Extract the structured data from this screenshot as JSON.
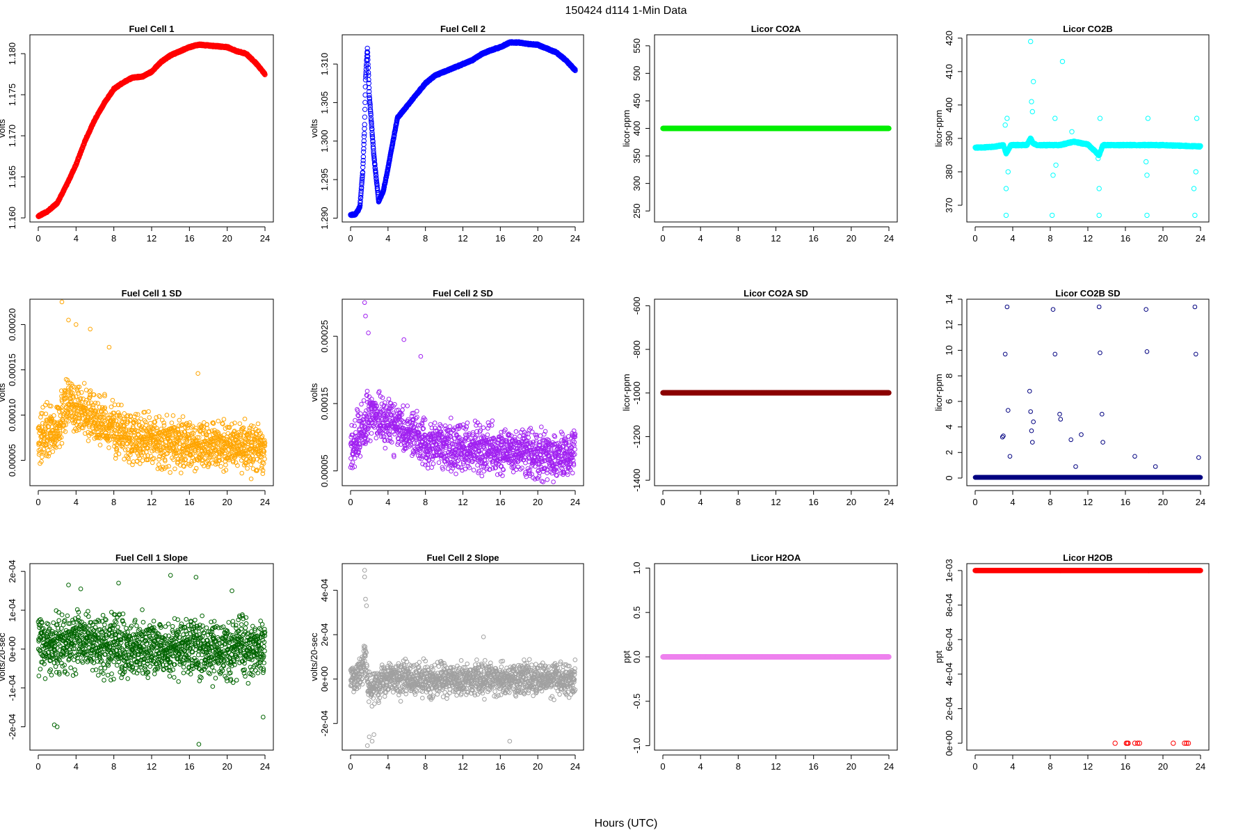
{
  "page": {
    "title": "150424   d114   1-Min Data",
    "xlabel": "Hours (UTC)"
  },
  "chart_data": [
    {
      "type": "scatter",
      "title": "Fuel Cell 1",
      "xlabel": "",
      "ylabel": "volts",
      "xlim": [
        0,
        24
      ],
      "ylim": [
        1.1595,
        1.1823
      ],
      "xticks": [
        0,
        4,
        8,
        12,
        16,
        20,
        24
      ],
      "xtick_labels": [
        "0",
        "4",
        "8",
        "12",
        "16",
        "20",
        "24"
      ],
      "yticks": [
        1.16,
        1.165,
        1.17,
        1.175,
        1.18
      ],
      "ytick_labels": [
        "1.160",
        "1.165",
        "1.170",
        "1.175",
        "1.180"
      ],
      "color": "#ff0000",
      "marker_size": 3.2,
      "x": [
        0,
        1,
        2,
        3,
        4,
        5,
        6,
        7,
        8,
        9,
        10,
        11,
        12,
        13,
        14,
        15,
        16,
        17,
        18,
        19,
        20,
        21,
        22,
        23,
        24
      ],
      "y": [
        1.1602,
        1.1608,
        1.1618,
        1.164,
        1.1665,
        1.1695,
        1.172,
        1.174,
        1.1757,
        1.1765,
        1.1771,
        1.1772,
        1.1778,
        1.179,
        1.1798,
        1.1803,
        1.1808,
        1.1811,
        1.181,
        1.1809,
        1.1808,
        1.1803,
        1.18,
        1.1789,
        1.1775
      ]
    },
    {
      "type": "scatter",
      "title": "Fuel Cell 2",
      "xlabel": "",
      "ylabel": "volts",
      "xlim": [
        0,
        24
      ],
      "ylim": [
        1.2895,
        1.3138
      ],
      "xticks": [
        0,
        4,
        8,
        12,
        16,
        20,
        24
      ],
      "xtick_labels": [
        "0",
        "4",
        "8",
        "12",
        "16",
        "20",
        "24"
      ],
      "yticks": [
        1.29,
        1.295,
        1.3,
        1.305,
        1.31
      ],
      "ytick_labels": [
        "1.290",
        "1.295",
        "1.300",
        "1.305",
        "1.310"
      ],
      "color": "#0000ff",
      "marker_size": 3.2,
      "x": [
        0,
        0.5,
        0.8,
        1.0,
        1.3,
        1.5,
        1.6,
        1.8,
        2.0,
        2.5,
        3.0,
        3.5,
        4,
        5,
        6,
        7,
        8,
        9,
        10,
        11,
        12,
        13,
        14,
        15,
        16,
        17,
        18,
        19,
        20,
        21,
        22,
        23,
        24
      ],
      "y": [
        1.2904,
        1.2905,
        1.291,
        1.2915,
        1.296,
        1.302,
        1.308,
        1.312,
        1.306,
        1.298,
        1.2922,
        1.2935,
        1.2965,
        1.303,
        1.3045,
        1.306,
        1.3075,
        1.3085,
        1.309,
        1.3095,
        1.31,
        1.3105,
        1.3113,
        1.3118,
        1.3122,
        1.3128,
        1.3128,
        1.3126,
        1.3125,
        1.312,
        1.3115,
        1.3105,
        1.3092
      ]
    },
    {
      "type": "scatter",
      "title": "Licor CO2A",
      "xlabel": "",
      "ylabel": "licor-ppm",
      "xlim": [
        0,
        24
      ],
      "ylim": [
        230,
        570
      ],
      "xticks": [
        0,
        4,
        8,
        12,
        16,
        20,
        24
      ],
      "xtick_labels": [
        "0",
        "4",
        "8",
        "12",
        "16",
        "20",
        "24"
      ],
      "yticks": [
        250,
        300,
        350,
        400,
        450,
        500,
        550
      ],
      "ytick_labels": [
        "250",
        "300",
        "350",
        "400",
        "450",
        "500",
        "550"
      ],
      "color": "#00ee00",
      "marker_size": 3.2,
      "x": [
        0,
        24
      ],
      "y": [
        400,
        400
      ]
    },
    {
      "type": "scatter",
      "title": "Licor CO2B",
      "xlabel": "",
      "ylabel": "licor-ppm",
      "xlim": [
        0,
        24
      ],
      "ylim": [
        365,
        421
      ],
      "xticks": [
        0,
        4,
        8,
        12,
        16,
        20,
        24
      ],
      "xtick_labels": [
        "0",
        "4",
        "8",
        "12",
        "16",
        "20",
        "24"
      ],
      "yticks": [
        370,
        380,
        390,
        400,
        410,
        420
      ],
      "ytick_labels": [
        "370",
        "380",
        "390",
        "400",
        "410",
        "420"
      ],
      "color": "#00ffff",
      "marker_size": 3.2,
      "x": [
        0,
        2,
        3,
        3.3,
        3.8,
        5.5,
        5.9,
        6.2,
        6.6,
        8,
        9,
        10.5,
        12,
        13.2,
        13.6,
        16,
        20,
        24
      ],
      "y": [
        387.2,
        387.5,
        388.0,
        385.5,
        388.0,
        388.0,
        390.0,
        388.5,
        388.0,
        388.0,
        388.0,
        389.0,
        388.2,
        385.0,
        388.0,
        388.0,
        388.0,
        387.6
      ],
      "outliers_x": [
        3.3,
        3.3,
        3.2,
        3.4,
        3.5,
        5.9,
        6.0,
        6.2,
        6.1,
        8.2,
        8.5,
        8.3,
        8.6,
        9.3,
        10.3,
        13.2,
        13.3,
        13.2,
        13.1,
        18.3,
        18.4,
        18.2,
        18.3,
        23.4,
        23.5,
        23.6,
        23.3
      ],
      "outliers_y": [
        367,
        375,
        394,
        396,
        380,
        419,
        401,
        407,
        398,
        367,
        396,
        379,
        382,
        413,
        392,
        367,
        396,
        375,
        384,
        367,
        396,
        383,
        379,
        367,
        380,
        396,
        375
      ]
    },
    {
      "type": "scatter",
      "title": "Fuel Cell 1 SD",
      "xlabel": "",
      "ylabel": "volts",
      "xlim": [
        0,
        24
      ],
      "ylim": [
        2.2e-05,
        0.000228
      ],
      "xticks": [
        0,
        4,
        8,
        12,
        16,
        20,
        24
      ],
      "xtick_labels": [
        "0",
        "4",
        "8",
        "12",
        "16",
        "20",
        "24"
      ],
      "yticks": [
        5e-05,
        0.0001,
        0.00015,
        0.0002
      ],
      "ytick_labels": [
        "0.00005",
        "0.00010",
        "0.00015",
        "0.00020"
      ],
      "color": "#ffa500",
      "marker_size": 2.8,
      "scatter_mean_x": [
        0,
        2,
        3,
        4,
        6,
        8,
        10,
        12,
        16,
        20,
        24
      ],
      "scatter_mean_y": [
        7.5e-05,
        8.5e-05,
        0.000115,
        0.00011,
        9.5e-05,
        8.5e-05,
        7.5e-05,
        7e-05,
        6.8e-05,
        6.5e-05,
        6.5e-05
      ],
      "scatter_spread": 2.2e-05,
      "highlights_x": [
        2.5,
        3.2,
        4.0,
        5.5,
        7.5,
        16.9
      ],
      "highlights_y": [
        0.000225,
        0.000205,
        0.0002,
        0.000195,
        0.000175,
        0.000146
      ]
    },
    {
      "type": "scatter",
      "title": "Fuel Cell 2 SD",
      "xlabel": "",
      "ylabel": "volts",
      "xlim": [
        0,
        24
      ],
      "ylim": [
        2.8e-05,
        0.000305
      ],
      "xticks": [
        0,
        4,
        8,
        12,
        16,
        20,
        24
      ],
      "xtick_labels": [
        "0",
        "4",
        "8",
        "12",
        "16",
        "20",
        "24"
      ],
      "yticks": [
        5e-05,
        0.00015,
        0.00025
      ],
      "ytick_labels": [
        "0.00005",
        "0.00015",
        "0.00025"
      ],
      "color": "#a020f0",
      "marker_size": 2.8,
      "scatter_mean_x": [
        0,
        1,
        2,
        3,
        4,
        6,
        8,
        10,
        12,
        16,
        20,
        24
      ],
      "scatter_mean_y": [
        8.5e-05,
        0.000105,
        0.000135,
        0.00013,
        0.000125,
        0.00011,
        9e-05,
        8.5e-05,
        8.5e-05,
        8e-05,
        7.5e-05,
        7.5e-05
      ],
      "scatter_spread": 2.8e-05,
      "highlights_x": [
        1.5,
        1.6,
        1.9,
        5.7,
        7.5
      ],
      "highlights_y": [
        0.0003,
        0.00028,
        0.000255,
        0.000245,
        0.00022
      ]
    },
    {
      "type": "scatter",
      "title": "Licor CO2A SD",
      "xlabel": "",
      "ylabel": "licor-ppm",
      "xlim": [
        0,
        24
      ],
      "ylim": [
        -1425,
        -570
      ],
      "xticks": [
        0,
        4,
        8,
        12,
        16,
        20,
        24
      ],
      "xtick_labels": [
        "0",
        "4",
        "8",
        "12",
        "16",
        "20",
        "24"
      ],
      "yticks": [
        -1400,
        -1200,
        -1000,
        -800,
        -600
      ],
      "ytick_labels": [
        "-1400",
        "-1200",
        "-1000",
        "-800",
        "-600"
      ],
      "color": "#8b0000",
      "marker_size": 3.2,
      "x": [
        0,
        24
      ],
      "y": [
        -999,
        -999
      ]
    },
    {
      "type": "scatter",
      "title": "Licor CO2B SD",
      "xlabel": "",
      "ylabel": "licor-ppm",
      "xlim": [
        0,
        24
      ],
      "ylim": [
        -0.6,
        14
      ],
      "xticks": [
        0,
        4,
        8,
        12,
        16,
        20,
        24
      ],
      "xtick_labels": [
        "0",
        "4",
        "8",
        "12",
        "16",
        "20",
        "24"
      ],
      "yticks": [
        0,
        2,
        4,
        6,
        8,
        10,
        12,
        14
      ],
      "ytick_labels": [
        "0",
        "2",
        "4",
        "6",
        "8",
        "10",
        "12",
        "14"
      ],
      "color": "#000080",
      "marker_size": 2.8,
      "x": [
        0,
        24
      ],
      "y": [
        0.05,
        0.05
      ],
      "outliers_x": [
        2.9,
        3.0,
        3.2,
        3.4,
        3.5,
        3.7,
        5.8,
        5.9,
        6.0,
        6.1,
        6.2,
        8.3,
        8.5,
        9.0,
        9.1,
        10.2,
        10.7,
        11.3,
        13.2,
        13.3,
        13.5,
        13.6,
        17.0,
        18.2,
        18.3,
        19.2,
        23.4,
        23.5,
        23.8
      ],
      "outliers_y": [
        3.2,
        3.3,
        9.7,
        13.4,
        5.3,
        1.7,
        6.8,
        5.2,
        3.7,
        2.8,
        4.4,
        13.2,
        9.7,
        5.0,
        4.6,
        3.0,
        0.9,
        3.4,
        13.4,
        9.8,
        5.0,
        2.8,
        1.7,
        13.2,
        9.9,
        0.9,
        13.4,
        9.7,
        1.6
      ]
    },
    {
      "type": "scatter",
      "title": "Fuel Cell 1 Slope",
      "xlabel": "",
      "ylabel": "volts/20-sec",
      "xlim": [
        0,
        24
      ],
      "ylim": [
        -0.00026,
        0.00022
      ],
      "xticks": [
        0,
        4,
        8,
        12,
        16,
        20,
        24
      ],
      "xtick_labels": [
        "0",
        "4",
        "8",
        "12",
        "16",
        "20",
        "24"
      ],
      "yticks": [
        -0.0002,
        -0.0001,
        0,
        0.0001,
        0.0002
      ],
      "ytick_labels": [
        "-2e-04",
        "-1e-04",
        "0e+00",
        "1e-04",
        "2e-04"
      ],
      "color": "#006400",
      "marker_size": 2.8,
      "scatter_mean_x": [
        0,
        4,
        8,
        12,
        16,
        20,
        24
      ],
      "scatter_mean_y": [
        1e-05,
        2e-05,
        1e-05,
        0,
        0,
        0,
        0
      ],
      "scatter_spread": 6e-05,
      "highlights_x": [
        1.7,
        2.0,
        3.2,
        4.5,
        8.5,
        14.0,
        16.7,
        17.0,
        20.5,
        23.8
      ],
      "highlights_y": [
        -0.000195,
        -0.0002,
        0.000165,
        0.000155,
        0.00017,
        0.00019,
        0.000185,
        -0.000245,
        0.00015,
        -0.000175
      ]
    },
    {
      "type": "scatter",
      "title": "Fuel Cell 2 Slope",
      "xlabel": "",
      "ylabel": "volts/20-sec",
      "xlim": [
        0,
        24
      ],
      "ylim": [
        -0.00032,
        0.00052
      ],
      "xticks": [
        0,
        4,
        8,
        12,
        16,
        20,
        24
      ],
      "xtick_labels": [
        "0",
        "4",
        "8",
        "12",
        "16",
        "20",
        "24"
      ],
      "yticks": [
        -0.0002,
        0,
        0.0002,
        0.0004
      ],
      "ytick_labels": [
        "-2e-04",
        "0e+00",
        "2e-04",
        "4e-04"
      ],
      "color": "#a0a0a0",
      "marker_size": 2.8,
      "scatter_mean_x": [
        0,
        1,
        1.5,
        2,
        3,
        4,
        8,
        12,
        16,
        20,
        24
      ],
      "scatter_mean_y": [
        0,
        2e-05,
        0.0001,
        -5e-05,
        -2e-05,
        1e-05,
        0,
        0,
        0,
        0,
        0
      ],
      "scatter_spread": 6e-05,
      "highlights_x": [
        1.5,
        1.5,
        1.6,
        1.7,
        1.8,
        2.0,
        2.3,
        2.5,
        14.2,
        17.0
      ],
      "highlights_y": [
        0.00049,
        0.00046,
        0.00036,
        0.00033,
        -0.0003,
        -0.00026,
        -0.00028,
        -0.00025,
        0.00019,
        -0.00028
      ]
    },
    {
      "type": "scatter",
      "title": "Licor H2OA",
      "xlabel": "",
      "ylabel": "ppt",
      "xlim": [
        0,
        24
      ],
      "ylim": [
        -1.05,
        1.05
      ],
      "xticks": [
        0,
        4,
        8,
        12,
        16,
        20,
        24
      ],
      "xtick_labels": [
        "0",
        "4",
        "8",
        "12",
        "16",
        "20",
        "24"
      ],
      "yticks": [
        -1.0,
        -0.5,
        0.0,
        0.5,
        1.0
      ],
      "ytick_labels": [
        "-1.0",
        "-0.5",
        "0.0",
        "0.5",
        "1.0"
      ],
      "color": "#ee82ee",
      "marker_size": 3.2,
      "x": [
        0,
        24
      ],
      "y": [
        0,
        0
      ]
    },
    {
      "type": "scatter",
      "title": "Licor H2OB",
      "xlabel": "",
      "ylabel": "ppt",
      "xlim": [
        0,
        24
      ],
      "ylim": [
        -4e-05,
        0.00104
      ],
      "xticks": [
        0,
        4,
        8,
        12,
        16,
        20,
        24
      ],
      "xtick_labels": [
        "0",
        "4",
        "8",
        "12",
        "16",
        "20",
        "24"
      ],
      "yticks": [
        0,
        0.0002,
        0.0004,
        0.0006,
        0.0008,
        0.001
      ],
      "ytick_labels": [
        "0e+00",
        "2e-04",
        "4e-04",
        "6e-04",
        "8e-04",
        "1e-03"
      ],
      "color": "#ff0000",
      "marker_size": 3.2,
      "x": [
        0,
        24
      ],
      "y": [
        0.001,
        0.001
      ],
      "outliers_x": [
        14.9,
        16.1,
        16.2,
        16.3,
        17.0,
        17.3,
        17.5,
        21.1,
        22.3,
        22.5,
        22.7
      ],
      "outliers_y": [
        0,
        0,
        0,
        0,
        0,
        0,
        0,
        0,
        0,
        0,
        0
      ]
    }
  ]
}
